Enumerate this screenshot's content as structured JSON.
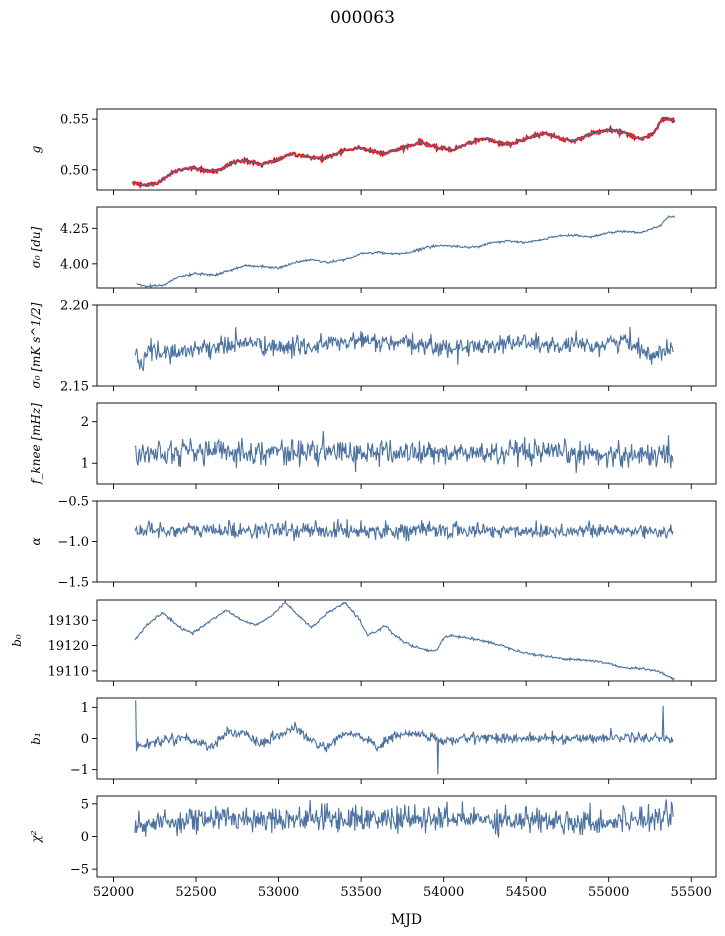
{
  "title": "000063",
  "xlabel": "MJD",
  "x_axis": {
    "range": [
      51900,
      55650
    ],
    "ticks": [
      52000,
      52500,
      53000,
      53500,
      54000,
      54500,
      55000,
      55500
    ]
  },
  "colors": {
    "line": "#4c72a0",
    "highlight": "#ff0000",
    "axes": "#000000"
  },
  "chart_data": [
    {
      "type": "line",
      "ylabel": "g",
      "ylim": [
        0.48,
        0.56
      ],
      "yticks": [
        0.5,
        0.55
      ],
      "ytick_labels": [
        "0.50",
        "0.55"
      ],
      "x_start": 52115,
      "x_end": 55400,
      "noise": 0.0006,
      "trend": [
        [
          52115,
          0.487
        ],
        [
          52200,
          0.485
        ],
        [
          52260,
          0.486
        ],
        [
          52330,
          0.495
        ],
        [
          52400,
          0.5
        ],
        [
          52480,
          0.502
        ],
        [
          52560,
          0.499
        ],
        [
          52640,
          0.499
        ],
        [
          52720,
          0.507
        ],
        [
          52800,
          0.509
        ],
        [
          52900,
          0.505
        ],
        [
          52980,
          0.509
        ],
        [
          53080,
          0.516
        ],
        [
          53200,
          0.512
        ],
        [
          53280,
          0.511
        ],
        [
          53400,
          0.519
        ],
        [
          53480,
          0.522
        ],
        [
          53560,
          0.519
        ],
        [
          53640,
          0.516
        ],
        [
          53760,
          0.522
        ],
        [
          53860,
          0.527
        ],
        [
          53960,
          0.522
        ],
        [
          54060,
          0.52
        ],
        [
          54180,
          0.528
        ],
        [
          54260,
          0.531
        ],
        [
          54340,
          0.526
        ],
        [
          54420,
          0.526
        ],
        [
          54520,
          0.532
        ],
        [
          54620,
          0.536
        ],
        [
          54720,
          0.53
        ],
        [
          54800,
          0.529
        ],
        [
          54900,
          0.536
        ],
        [
          55000,
          0.539
        ],
        [
          55100,
          0.537
        ],
        [
          55150,
          0.532
        ],
        [
          55200,
          0.531
        ],
        [
          55270,
          0.535
        ],
        [
          55320,
          0.549
        ],
        [
          55360,
          0.551
        ],
        [
          55400,
          0.548
        ]
      ],
      "highlight_series": true
    },
    {
      "type": "line",
      "ylabel": "σ₀ [du]",
      "ylim": [
        3.83,
        4.4
      ],
      "yticks": [
        4.0,
        4.25
      ],
      "ytick_labels": [
        "4.00",
        "4.25"
      ],
      "x_start": 52140,
      "x_end": 55400,
      "noise": 0.004,
      "trend": [
        [
          52140,
          3.86
        ],
        [
          52200,
          3.84
        ],
        [
          52300,
          3.85
        ],
        [
          52400,
          3.91
        ],
        [
          52500,
          3.93
        ],
        [
          52620,
          3.92
        ],
        [
          52700,
          3.95
        ],
        [
          52800,
          3.99
        ],
        [
          52900,
          3.98
        ],
        [
          53000,
          3.97
        ],
        [
          53100,
          4.01
        ],
        [
          53200,
          4.03
        ],
        [
          53300,
          4.01
        ],
        [
          53400,
          4.03
        ],
        [
          53500,
          4.07
        ],
        [
          53600,
          4.08
        ],
        [
          53700,
          4.07
        ],
        [
          53800,
          4.08
        ],
        [
          53900,
          4.12
        ],
        [
          54000,
          4.13
        ],
        [
          54100,
          4.12
        ],
        [
          54200,
          4.12
        ],
        [
          54300,
          4.15
        ],
        [
          54400,
          4.16
        ],
        [
          54500,
          4.15
        ],
        [
          54600,
          4.17
        ],
        [
          54700,
          4.2
        ],
        [
          54800,
          4.2
        ],
        [
          54900,
          4.19
        ],
        [
          55000,
          4.22
        ],
        [
          55100,
          4.23
        ],
        [
          55200,
          4.22
        ],
        [
          55300,
          4.26
        ],
        [
          55360,
          4.33
        ],
        [
          55400,
          4.33
        ]
      ]
    },
    {
      "type": "line",
      "ylabel": "σ₀ [mK s^1/2]",
      "ylim": [
        2.15,
        2.2
      ],
      "yticks": [
        2.15,
        2.2
      ],
      "ytick_labels": [
        "2.15",
        "2.20"
      ],
      "x_start": 52130,
      "x_end": 55390,
      "noise": 0.003,
      "trend": [
        [
          52130,
          2.171
        ],
        [
          52170,
          2.162
        ],
        [
          52220,
          2.173
        ],
        [
          52300,
          2.17
        ],
        [
          52500,
          2.173
        ],
        [
          52700,
          2.175
        ],
        [
          52800,
          2.177
        ],
        [
          53000,
          2.173
        ],
        [
          53300,
          2.176
        ],
        [
          53500,
          2.178
        ],
        [
          53700,
          2.176
        ],
        [
          53900,
          2.175
        ],
        [
          54100,
          2.173
        ],
        [
          54300,
          2.176
        ],
        [
          54500,
          2.177
        ],
        [
          54700,
          2.174
        ],
        [
          54900,
          2.175
        ],
        [
          55100,
          2.178
        ],
        [
          55250,
          2.17
        ],
        [
          55390,
          2.172
        ]
      ]
    },
    {
      "type": "line",
      "ylabel": "f_knee [mHz]",
      "ylim": [
        0.5,
        2.45
      ],
      "yticks": [
        1,
        2
      ],
      "ytick_labels": [
        "1",
        "2"
      ],
      "x_start": 52130,
      "x_end": 55390,
      "noise": 0.15,
      "trend": [
        [
          52130,
          1.3
        ],
        [
          55390,
          1.2
        ]
      ]
    },
    {
      "type": "line",
      "ylabel": "α",
      "ylim": [
        -1.5,
        -0.5
      ],
      "yticks": [
        -1.5,
        -1.0,
        -0.5
      ],
      "ytick_labels": [
        "−1.5",
        "−1.0",
        "−0.5"
      ],
      "x_start": 52130,
      "x_end": 55390,
      "noise": 0.05,
      "trend": [
        [
          52130,
          -0.86
        ],
        [
          55390,
          -0.87
        ]
      ]
    },
    {
      "type": "line",
      "ylabel": "b₀",
      "ylim": [
        19106,
        19138
      ],
      "yticks": [
        19110,
        19120,
        19130
      ],
      "ytick_labels": [
        "19110",
        "19120",
        "19130"
      ],
      "x_start": 52130,
      "x_end": 55400,
      "noise": 0.25,
      "trend": [
        [
          52130,
          19122
        ],
        [
          52200,
          19128
        ],
        [
          52300,
          19133
        ],
        [
          52400,
          19127
        ],
        [
          52480,
          19125
        ],
        [
          52550,
          19128
        ],
        [
          52680,
          19134
        ],
        [
          52780,
          19130
        ],
        [
          52860,
          19128
        ],
        [
          52960,
          19132
        ],
        [
          53040,
          19137
        ],
        [
          53120,
          19132
        ],
        [
          53200,
          19127
        ],
        [
          53300,
          19133
        ],
        [
          53400,
          19137
        ],
        [
          53480,
          19131
        ],
        [
          53540,
          19124
        ],
        [
          53600,
          19126
        ],
        [
          53650,
          19128
        ],
        [
          53700,
          19124
        ],
        [
          53800,
          19120
        ],
        [
          53900,
          19118
        ],
        [
          53960,
          19118
        ],
        [
          54000,
          19123
        ],
        [
          54050,
          19124
        ],
        [
          54150,
          19123
        ],
        [
          54300,
          19121
        ],
        [
          54500,
          19117
        ],
        [
          54700,
          19115
        ],
        [
          54900,
          19114
        ],
        [
          55000,
          19113
        ],
        [
          55100,
          19111
        ],
        [
          55200,
          19111
        ],
        [
          55300,
          19110
        ],
        [
          55380,
          19107
        ],
        [
          55400,
          19107
        ]
      ]
    },
    {
      "type": "line",
      "ylabel": "b₁",
      "ylim": [
        -1.3,
        1.3
      ],
      "yticks": [
        -1,
        0,
        1
      ],
      "ytick_labels": [
        "−1",
        "0",
        "1"
      ],
      "x_start": 52130,
      "x_end": 55390,
      "noise": 0.08,
      "trend": [
        [
          52130,
          -0.25
        ],
        [
          52200,
          -0.2
        ],
        [
          52300,
          -0.05
        ],
        [
          52400,
          0.05
        ],
        [
          52500,
          -0.1
        ],
        [
          52600,
          -0.25
        ],
        [
          52700,
          0.25
        ],
        [
          52800,
          0.1
        ],
        [
          52900,
          -0.2
        ],
        [
          53000,
          0.1
        ],
        [
          53100,
          0.35
        ],
        [
          53200,
          -0.1
        ],
        [
          53300,
          -0.3
        ],
        [
          53400,
          0.15
        ],
        [
          53500,
          0.1
        ],
        [
          53600,
          -0.3
        ],
        [
          53700,
          0.1
        ],
        [
          53800,
          0.15
        ],
        [
          53900,
          0.1
        ],
        [
          54000,
          -0.1
        ],
        [
          54200,
          0.05
        ],
        [
          54500,
          0.0
        ],
        [
          54800,
          0.0
        ],
        [
          55100,
          0.05
        ],
        [
          55390,
          0.0
        ]
      ],
      "spikes": [
        [
          52132,
          1.2
        ],
        [
          53965,
          -1.15
        ],
        [
          55330,
          1.05
        ]
      ]
    },
    {
      "type": "line",
      "ylabel": "χ²",
      "ylim": [
        -6.2,
        6.2
      ],
      "yticks": [
        -5,
        0,
        5
      ],
      "ytick_labels": [
        "−5",
        "0",
        "5"
      ],
      "x_start": 52130,
      "x_end": 55390,
      "noise": 1.0,
      "trend": [
        [
          52130,
          1.5
        ],
        [
          52400,
          2.5
        ],
        [
          52700,
          2.8
        ],
        [
          53000,
          2.8
        ],
        [
          53400,
          2.8
        ],
        [
          53800,
          2.6
        ],
        [
          54200,
          2.7
        ],
        [
          54600,
          2.5
        ],
        [
          55000,
          2.2
        ],
        [
          55390,
          3.5
        ]
      ]
    }
  ]
}
